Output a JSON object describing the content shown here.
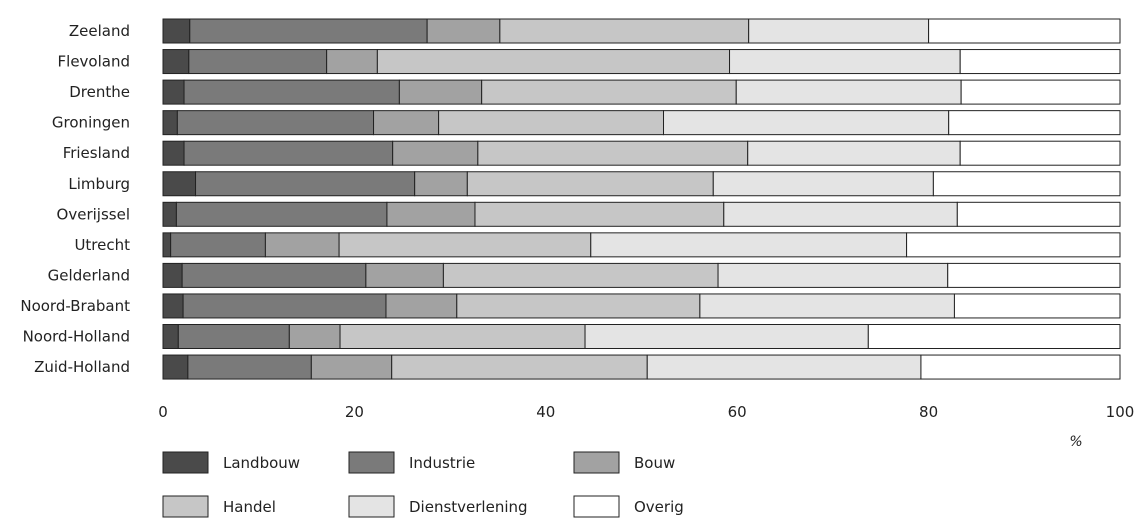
{
  "chart_data": {
    "type": "bar",
    "orientation": "horizontal",
    "stacked": true,
    "categories": [
      "Zeeland",
      "Flevoland",
      "Drenthe",
      "Groningen",
      "Friesland",
      "Limburg",
      "Overijssel",
      "Utrecht",
      "Gelderland",
      "Noord-Brabant",
      "Noord-Holland",
      "Zuid-Holland"
    ],
    "series": [
      {
        "name": "Landbouw",
        "color": "#4a4a4a",
        "values": [
          2.8,
          2.7,
          2.2,
          1.5,
          2.2,
          3.4,
          1.4,
          0.8,
          2.0,
          2.1,
          1.6,
          2.6
        ]
      },
      {
        "name": "Industrie",
        "color": "#7a7a7a",
        "values": [
          24.8,
          14.4,
          22.5,
          20.5,
          21.8,
          22.9,
          22.0,
          9.9,
          19.2,
          21.2,
          11.6,
          12.9
        ]
      },
      {
        "name": "Bouw",
        "color": "#a2a2a2",
        "values": [
          7.6,
          5.3,
          8.6,
          6.8,
          8.9,
          5.5,
          9.2,
          7.7,
          8.1,
          7.4,
          5.3,
          8.4
        ]
      },
      {
        "name": "Handel",
        "color": "#c6c6c6",
        "values": [
          26.0,
          36.8,
          26.6,
          23.5,
          28.2,
          25.7,
          26.0,
          26.3,
          28.7,
          25.4,
          25.6,
          26.7
        ]
      },
      {
        "name": "Dienstverlening",
        "color": "#e4e4e4",
        "values": [
          18.8,
          24.1,
          23.5,
          29.8,
          22.2,
          23.0,
          24.4,
          33.0,
          24.0,
          26.6,
          29.6,
          28.6
        ]
      },
      {
        "name": "Overig",
        "color": "#ffffff",
        "values": [
          20.0,
          16.7,
          16.6,
          17.9,
          16.7,
          19.5,
          17.0,
          22.3,
          18.0,
          17.3,
          26.3,
          20.8
        ]
      }
    ],
    "xlim": [
      0,
      100
    ],
    "xticks": [
      0,
      20,
      40,
      60,
      80,
      100
    ],
    "xunit": "%",
    "legend_position": "bottom",
    "grid": false
  }
}
